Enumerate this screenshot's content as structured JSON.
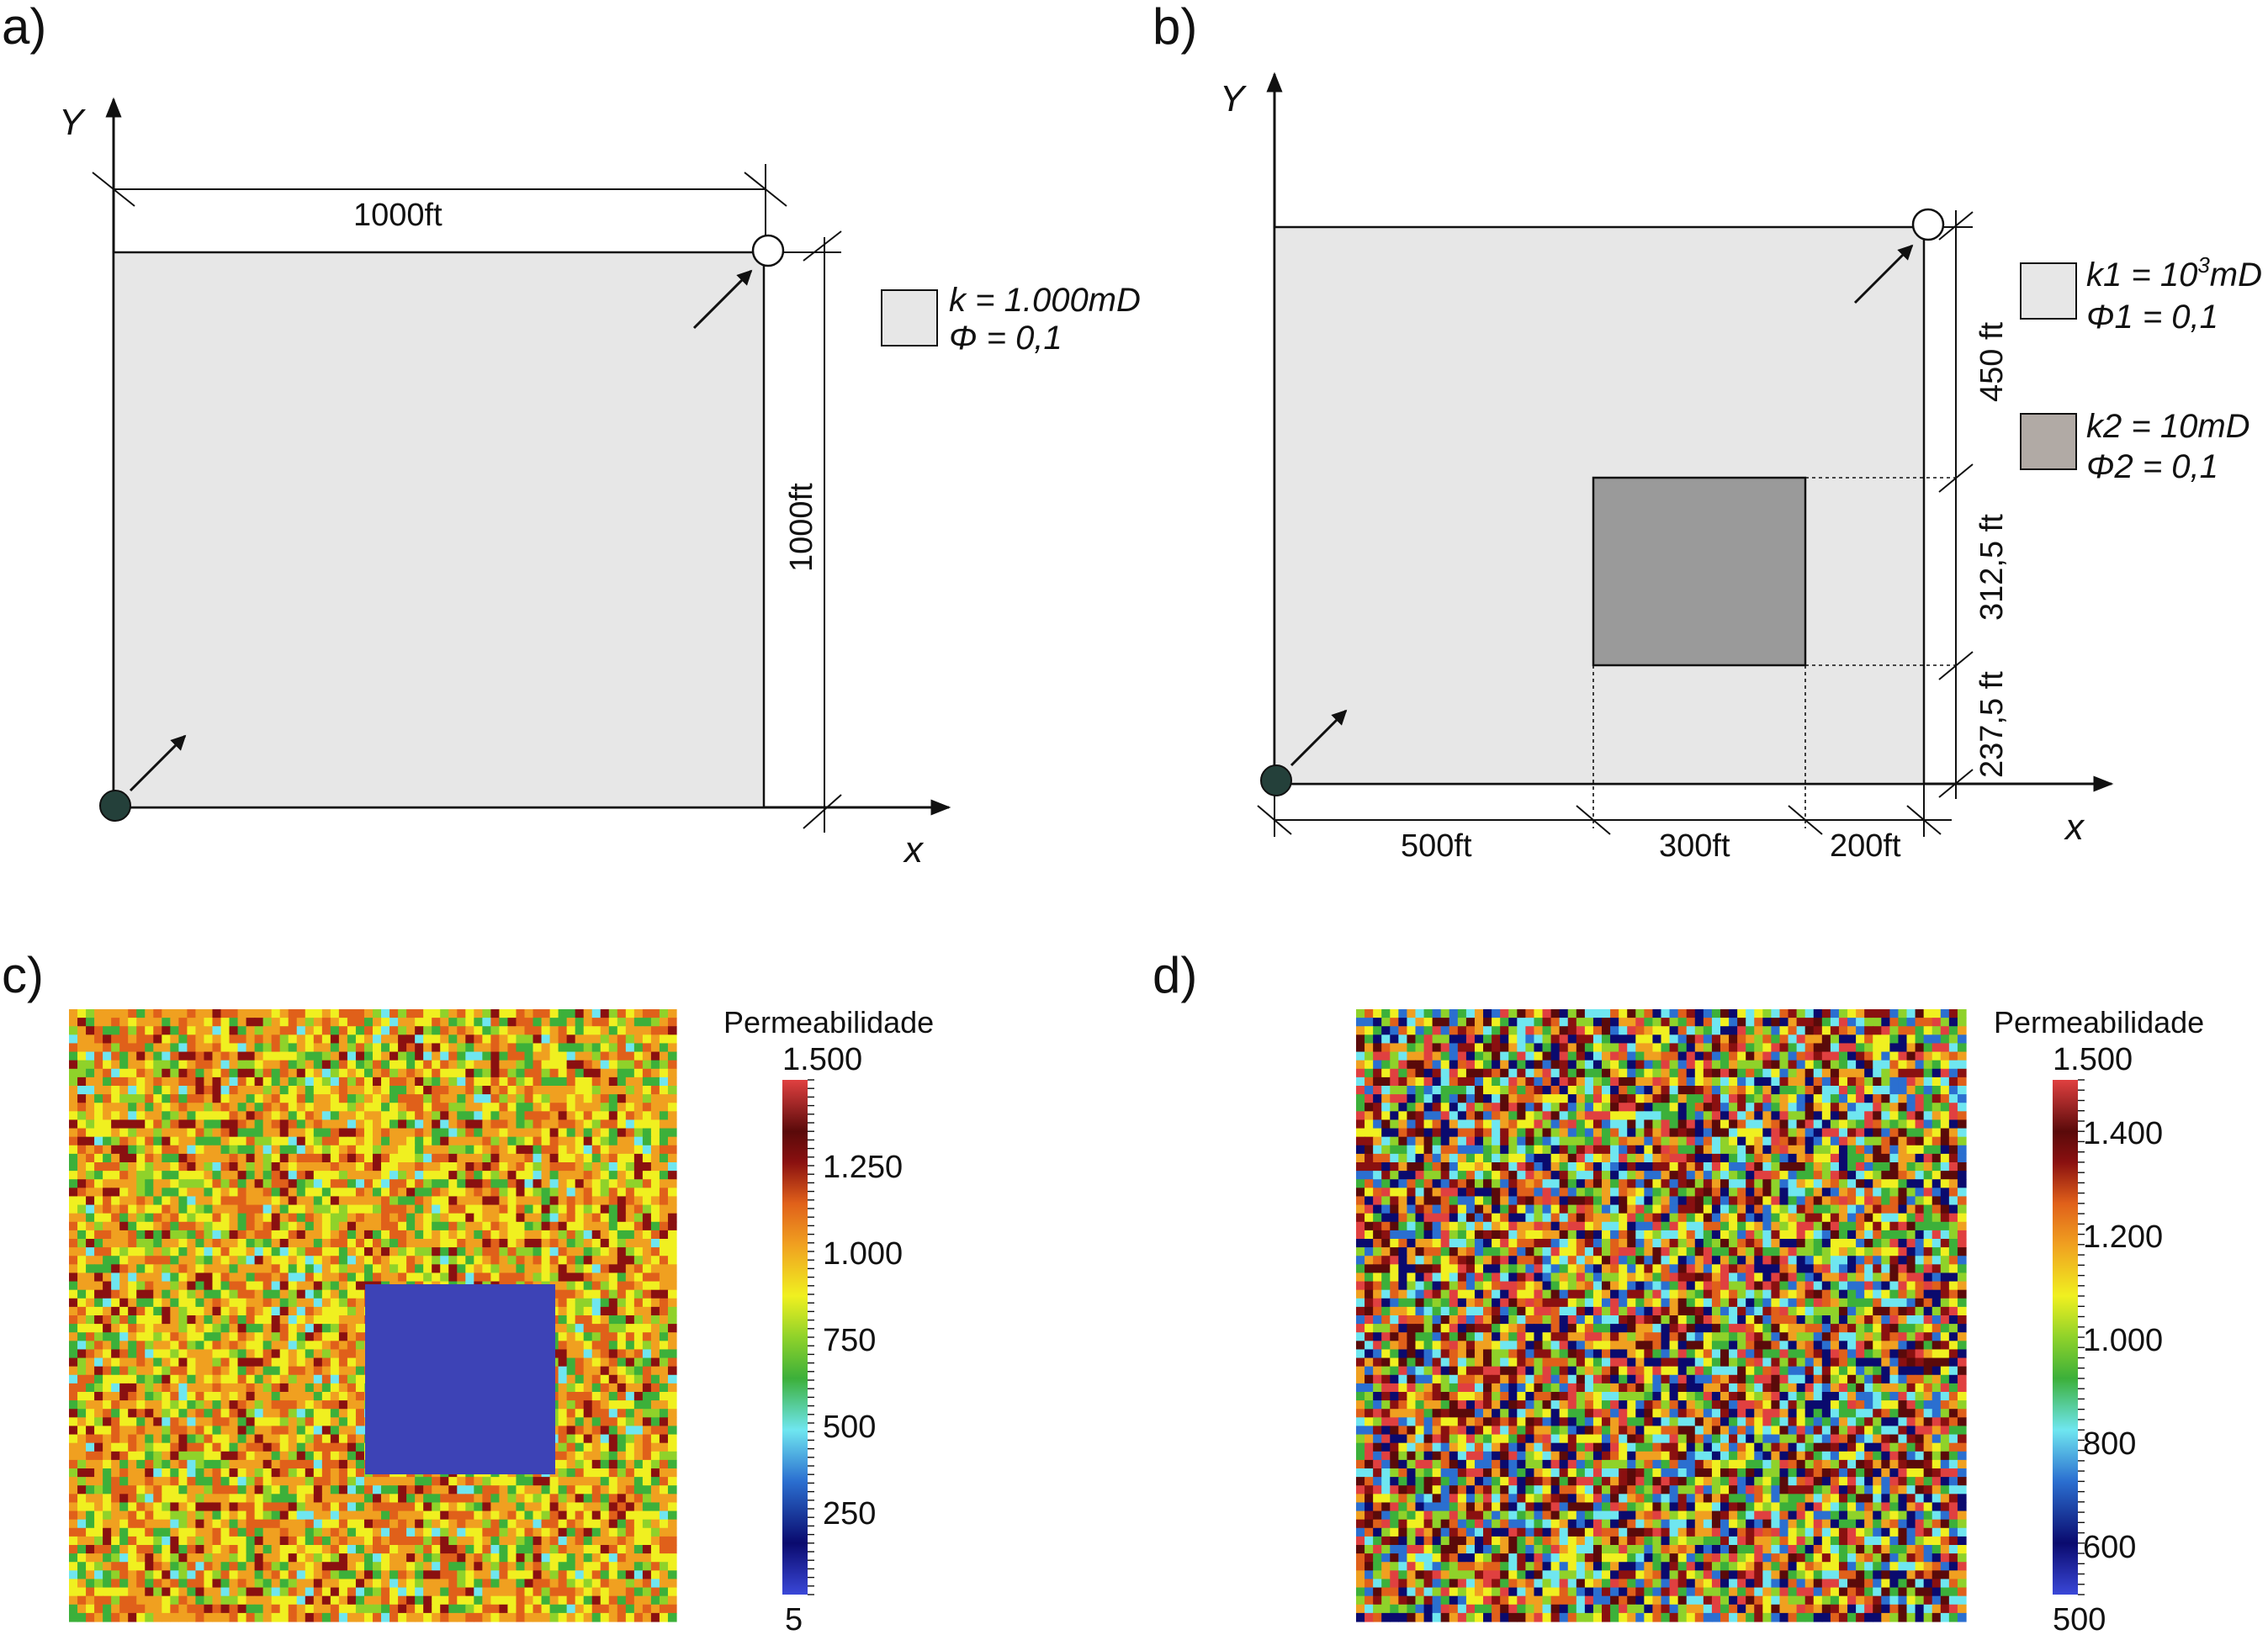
{
  "panels": {
    "a": {
      "label": "a)",
      "axis_y": "Y",
      "axis_x": "x",
      "width_dim": "1000ft",
      "height_dim": "1000ft",
      "legend": {
        "line1": "k = 1.000mD",
        "line2": "Φ = 0,1"
      },
      "colors": {
        "domain": "#e7e7e7",
        "well": "#24403a"
      }
    },
    "b": {
      "label": "b)",
      "axis_y": "Y",
      "axis_x": "x",
      "dims_x": [
        "500ft",
        "300ft",
        "200ft"
      ],
      "dims_y": [
        "450 ft",
        "312,5 ft",
        "237,5 ft"
      ],
      "legend": [
        {
          "line1_pre": "k1 = 10",
          "line1_sup": "3",
          "line1_post": "mD",
          "line2": "Φ1 = 0,1",
          "color": "#e7e7e7"
        },
        {
          "line1_pre": "k2 = 10mD",
          "line1_sup": "",
          "line1_post": "",
          "line2": "Φ2 = 0,1",
          "color": "#b1aaa5"
        }
      ],
      "colors": {
        "domain": "#e7e7e7",
        "inclusion": "#9a9a9a",
        "well": "#24403a"
      }
    },
    "c": {
      "label": "c)",
      "colorbar_title": "Permeabilidade",
      "colorbar_min": "5",
      "colorbar_max": "1.500",
      "colorbar_ticks": [
        "1.250",
        "1.000",
        "750",
        "500",
        "250"
      ],
      "colors": {
        "inclusion": "#3d43b6"
      }
    },
    "d": {
      "label": "d)",
      "colorbar_title": "Permeabilidade",
      "colorbar_min": "500",
      "colorbar_max": "1.500",
      "colorbar_ticks": [
        "1.400",
        "1.200",
        "1.000",
        "800",
        "600"
      ]
    }
  },
  "colormap": [
    "#3a47d8",
    "#0a0a6e",
    "#2b6fd0",
    "#6fe6f0",
    "#3cb03a",
    "#8fd22a",
    "#f0f020",
    "#f0a020",
    "#e0601a",
    "#8a1010",
    "#5a0a0a",
    "#e04040"
  ]
}
